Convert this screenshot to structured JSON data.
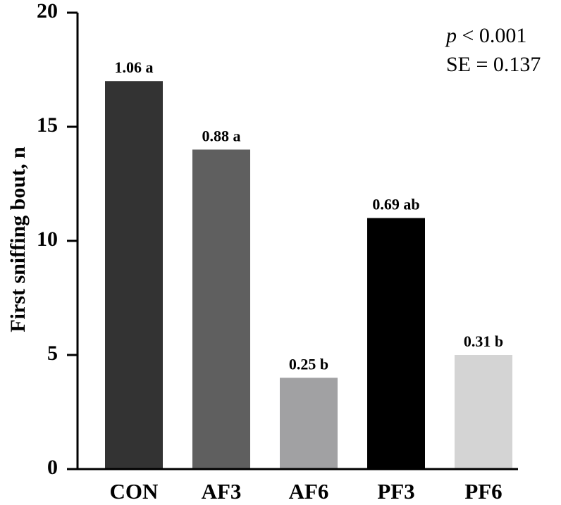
{
  "chart_data": {
    "type": "bar",
    "categories": [
      "CON",
      "AF3",
      "AF6",
      "PF3",
      "PF6"
    ],
    "values": [
      17,
      14,
      4,
      11,
      5
    ],
    "bar_labels": [
      "1.06 a",
      "0.88 a",
      "0.25 b",
      "0.69 ab",
      "0.31 b"
    ],
    "bar_colors": [
      "#333333",
      "#5f5f5f",
      "#a1a1a3",
      "#000000",
      "#d4d4d4"
    ],
    "ylabel": "First sniffing bout, n",
    "xlabel": "",
    "ylim": [
      0,
      20
    ],
    "yticks": [
      0,
      5,
      10,
      15,
      20
    ],
    "grid": false,
    "annotation": {
      "p_symbol": "p",
      "p_text": " < 0.001",
      "se_text": "SE = 0.137"
    }
  }
}
